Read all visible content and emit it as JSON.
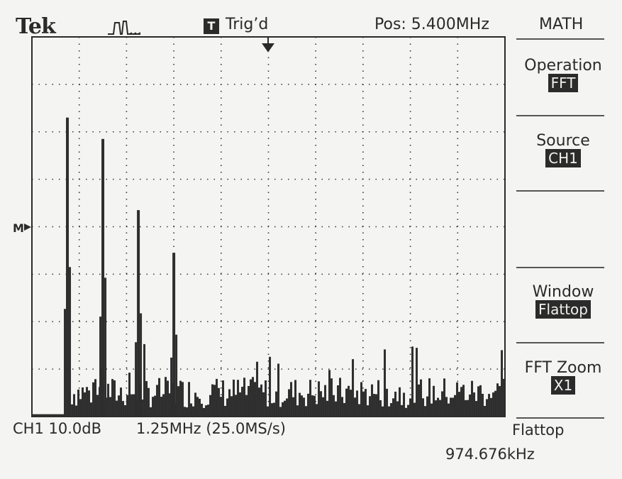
{
  "header": {
    "brand": "Tek",
    "trigger_box": "T",
    "trigger_status": "Trig’d",
    "position": "Pos: 5.400MHz"
  },
  "menu": {
    "title": "MATH",
    "items": [
      {
        "label": "Operation",
        "value": "FFT"
      },
      {
        "label": "Source",
        "value": "CH1"
      },
      {
        "label": "Window",
        "value": "Flattop"
      },
      {
        "label": "FFT Zoom",
        "value": "X1"
      }
    ]
  },
  "status": {
    "channel_scale": "CH1 10.0dB",
    "frequency_scale": "1.25MHz (25.0MS/s)",
    "window": "Flattop",
    "cursor_freq": "974.676kHz"
  },
  "marker": "M",
  "chart_data": {
    "type": "bar",
    "title": "",
    "xlabel": "",
    "ylabel": "",
    "y_unit": "divisions above screen bottom",
    "x_unit": "horizontal divisions",
    "grid": true,
    "xlim": [
      0,
      10
    ],
    "ylim": [
      0,
      8
    ],
    "peaks": [
      {
        "x": 0.75,
        "y": 6.3
      },
      {
        "x": 1.5,
        "y": 5.85
      },
      {
        "x": 2.25,
        "y": 4.35
      },
      {
        "x": 3.0,
        "y": 3.45
      }
    ],
    "noise_floor": {
      "x_start": 0.75,
      "x_end": 10.0,
      "typical": 0.6,
      "max": 1.6
    }
  }
}
